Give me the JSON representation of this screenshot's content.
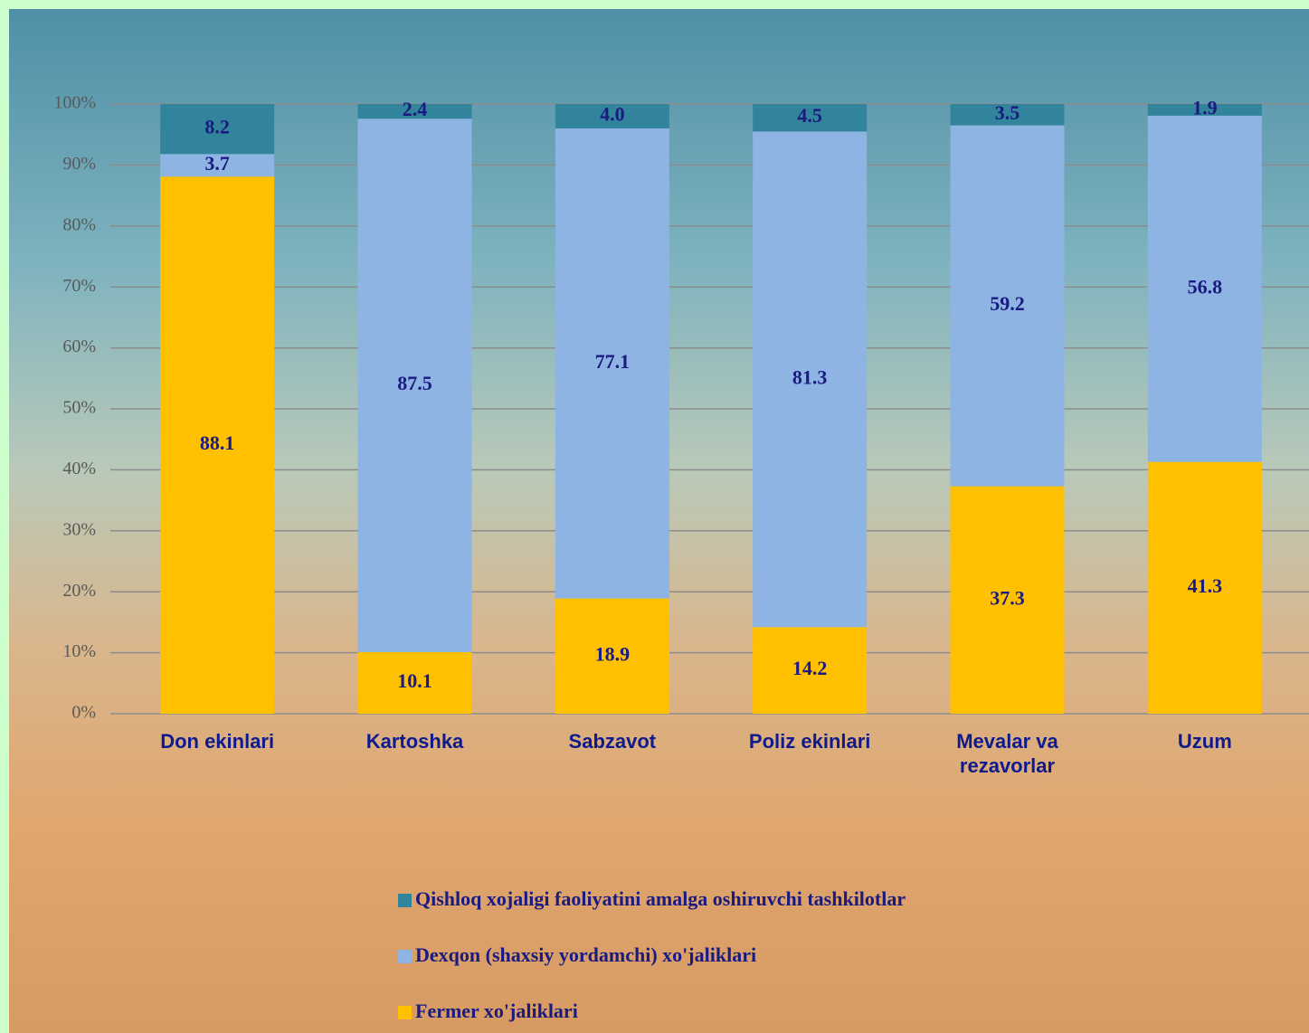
{
  "chart_data": {
    "type": "stacked_bar",
    "categories": [
      "Don ekinlari",
      "Kartoshka",
      "Sabzavot",
      "Poliz ekinlari",
      "Mevalar va rezavorlar",
      "Uzum"
    ],
    "series": [
      {
        "name": "Fermer xo'jaliklari",
        "color": "#ffc000",
        "values": [
          88.1,
          10.1,
          18.9,
          14.2,
          37.3,
          41.3
        ]
      },
      {
        "name": "Dexqon (shaxsiy yordamchi) xo'jaliklari",
        "color": "#8eb4e3",
        "values": [
          3.7,
          87.5,
          77.1,
          81.3,
          59.2,
          56.8
        ]
      },
      {
        "name": "Qishloq xojaligi faoliyatini amalga oshiruvchi tashkilotlar",
        "color": "#31849b",
        "values": [
          8.2,
          2.4,
          4.0,
          4.5,
          3.5,
          1.9
        ],
        "value_labels": [
          "8.2",
          "2.4",
          "4.0",
          "4.5",
          "3.5",
          "1.9"
        ]
      }
    ],
    "ylim": [
      0,
      100
    ],
    "yticks": [
      {
        "value": 0,
        "label": "0%"
      },
      {
        "value": 10,
        "label": "10%"
      },
      {
        "value": 20,
        "label": "20%"
      },
      {
        "value": 30,
        "label": "30%"
      },
      {
        "value": 40,
        "label": "40%"
      },
      {
        "value": 50,
        "label": "50%"
      },
      {
        "value": 60,
        "label": "60%"
      },
      {
        "value": 70,
        "label": "70%"
      },
      {
        "value": 80,
        "label": "80%"
      },
      {
        "value": 90,
        "label": "90%"
      },
      {
        "value": 100,
        "label": "100%"
      }
    ],
    "grid": true,
    "legend": "bottom"
  }
}
